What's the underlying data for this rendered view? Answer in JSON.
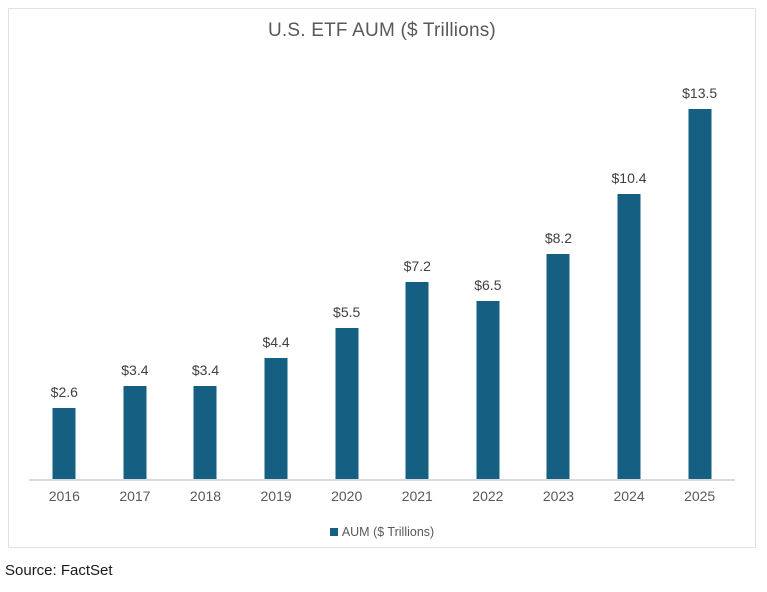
{
  "title": "U.S. ETF AUM ($ Trillions)",
  "source": "Source: FactSet",
  "legend": {
    "label": "AUM ($ Trillions)"
  },
  "colors": {
    "bar": "#156082",
    "axis_line": "#d9d9d9",
    "title_text": "#595959",
    "axis_text": "#595959",
    "data_label_text": "#404040",
    "card_border": "#e2e2e2"
  },
  "chart_data": {
    "type": "bar",
    "title": "U.S. ETF AUM ($ Trillions)",
    "categories": [
      "2016",
      "2017",
      "2018",
      "2019",
      "2020",
      "2021",
      "2022",
      "2023",
      "2024",
      "2025"
    ],
    "series": [
      {
        "name": "AUM ($ Trillions)",
        "values": [
          2.6,
          3.4,
          3.4,
          4.4,
          5.5,
          7.2,
          6.5,
          8.2,
          10.4,
          13.5
        ]
      }
    ],
    "data_labels": [
      "$2.6",
      "$3.4",
      "$3.4",
      "$4.4",
      "$5.5",
      "$7.2",
      "$6.5",
      "$8.2",
      "$10.4",
      "$13.5"
    ],
    "xlabel": "",
    "ylabel": "",
    "ylim": [
      0,
      14.6
    ],
    "grid": false,
    "y_axis_visible": false,
    "legend_position": "bottom"
  }
}
